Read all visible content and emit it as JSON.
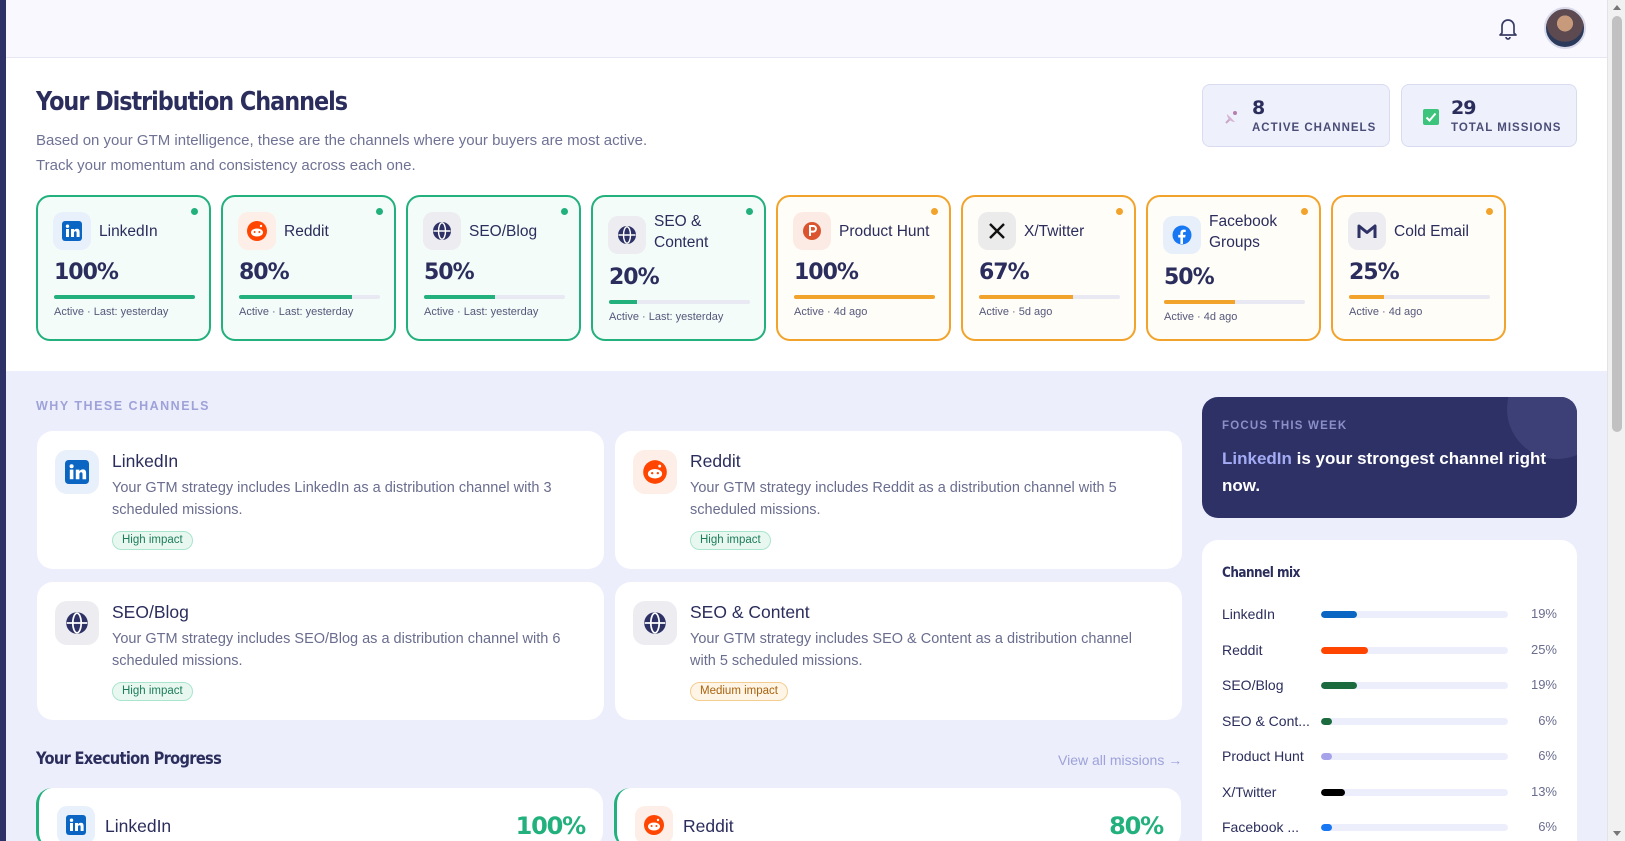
{
  "header": {
    "title": "Your Distribution Channels",
    "subtitle": "Based on your GTM intelligence, these are the channels where your buyers are most active. Track your momentum and consistency across each one.",
    "stats": [
      {
        "value": "8",
        "label": "ACTIVE CHANNELS",
        "icon": "satellite-dish-icon"
      },
      {
        "value": "29",
        "label": "TOTAL MISSIONS",
        "icon": "check-box-icon"
      }
    ]
  },
  "topbar": {
    "icons": [
      "bell-icon",
      "avatar"
    ]
  },
  "channel_cards": [
    {
      "name": "LinkedIn",
      "percent": "100%",
      "progress": 1.0,
      "meta": "Active · Last: yesterday",
      "status": "green",
      "icon": "linkedin-icon"
    },
    {
      "name": "Reddit",
      "percent": "80%",
      "progress": 0.8,
      "meta": "Active · Last: yesterday",
      "status": "green",
      "icon": "reddit-icon"
    },
    {
      "name": "SEO/Blog",
      "percent": "50%",
      "progress": 0.5,
      "meta": "Active · Last: yesterday",
      "status": "green",
      "icon": "globe-icon"
    },
    {
      "name": "SEO & Content",
      "percent": "20%",
      "progress": 0.2,
      "meta": "Active · Last: yesterday",
      "status": "green",
      "icon": "globe-icon"
    },
    {
      "name": "Product Hunt",
      "percent": "100%",
      "progress": 1.0,
      "meta": "Active · 4d ago",
      "status": "orange",
      "icon": "product-hunt-icon"
    },
    {
      "name": "X/Twitter",
      "percent": "67%",
      "progress": 0.67,
      "meta": "Active · 5d ago",
      "status": "orange",
      "icon": "x-twitter-icon"
    },
    {
      "name": "Facebook Groups",
      "percent": "50%",
      "progress": 0.5,
      "meta": "Active · 4d ago",
      "status": "orange",
      "icon": "facebook-icon"
    },
    {
      "name": "Cold Email",
      "percent": "25%",
      "progress": 0.25,
      "meta": "Active · 4d ago",
      "status": "orange",
      "icon": "gmail-icon"
    }
  ],
  "why": {
    "heading": "WHY THESE CHANNELS",
    "cards": [
      {
        "name": "LinkedIn",
        "desc": "Your GTM strategy includes LinkedIn as a distribution channel with 3 scheduled missions.",
        "tag": "High impact",
        "icon": "linkedin-icon"
      },
      {
        "name": "Reddit",
        "desc": "Your GTM strategy includes Reddit as a distribution channel with 5 scheduled missions.",
        "tag": "High impact",
        "icon": "reddit-icon"
      },
      {
        "name": "SEO/Blog",
        "desc": "Your GTM strategy includes SEO/Blog as a distribution channel with 6 scheduled missions.",
        "tag": "High impact",
        "icon": "globe-icon"
      },
      {
        "name": "SEO & Content",
        "desc": "Your GTM strategy includes SEO & Content as a distribution channel with 5 scheduled missions.",
        "tag": "Medium impact",
        "icon": "globe-icon"
      }
    ]
  },
  "execution": {
    "heading": "Your Execution Progress",
    "view_all": "View all missions →",
    "items": [
      {
        "name": "LinkedIn",
        "percent": "100%",
        "icon": "linkedin-icon"
      },
      {
        "name": "Reddit",
        "percent": "80%",
        "icon": "reddit-icon"
      }
    ]
  },
  "focus": {
    "kicker": "FOCUS THIS WEEK",
    "channel": "LinkedIn",
    "text": " is your strongest channel right now."
  },
  "mix": {
    "heading": "Channel mix",
    "rows": [
      {
        "name": "LinkedIn",
        "value": "19%",
        "share": 0.19,
        "color": "#0a66c2"
      },
      {
        "name": "Reddit",
        "value": "25%",
        "share": 0.25,
        "color": "#ff4500"
      },
      {
        "name": "SEO/Blog",
        "value": "19%",
        "share": 0.19,
        "color": "#1c6b3f"
      },
      {
        "name": "SEO & Cont...",
        "value": "6%",
        "share": 0.06,
        "color": "#1c6b3f"
      },
      {
        "name": "Product Hunt",
        "value": "6%",
        "share": 0.06,
        "color": "#a7a3ea"
      },
      {
        "name": "X/Twitter",
        "value": "13%",
        "share": 0.13,
        "color": "#000000"
      },
      {
        "name": "Facebook ...",
        "value": "6%",
        "share": 0.06,
        "color": "#1877f2"
      }
    ]
  }
}
